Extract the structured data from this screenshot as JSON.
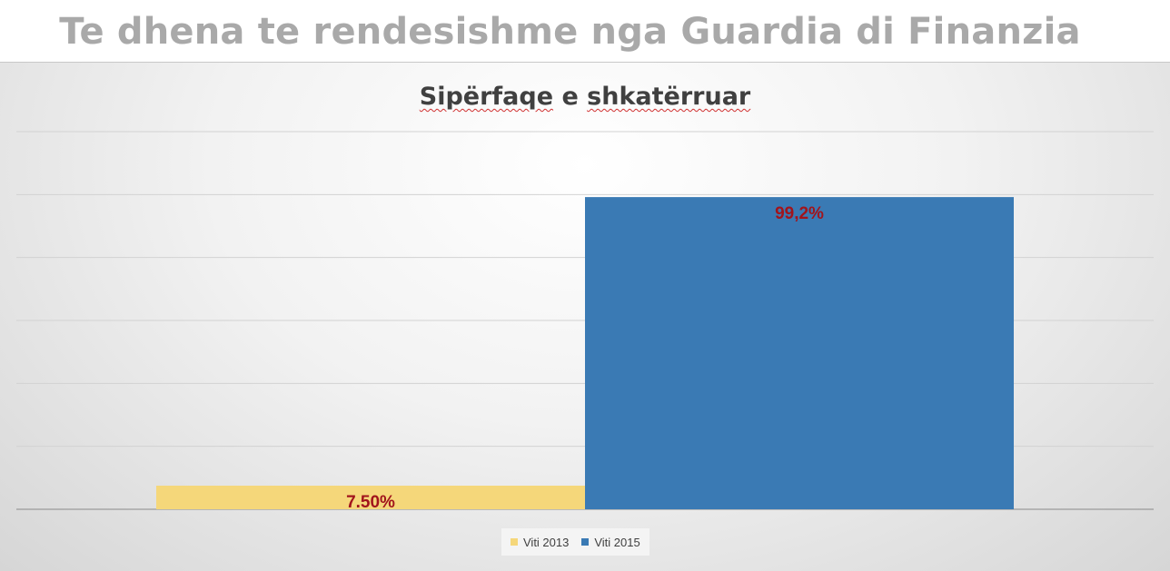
{
  "slide": {
    "title": "Te dhena te rendesishme nga Guardia di Finanzia"
  },
  "chart_data": {
    "type": "bar",
    "title_parts": [
      "Sipërfaqe",
      "e",
      "shkatërruar"
    ],
    "categories": [
      ""
    ],
    "series": [
      {
        "name": "Viti 2013",
        "value": 7.5,
        "label": "7.50%",
        "color": "#f5d77a"
      },
      {
        "name": "Viti 2015",
        "value": 99.2,
        "label": "99,2%",
        "color": "#3a7ab4"
      }
    ],
    "ylim": [
      0,
      120
    ],
    "gridlines": true,
    "legend_position": "bottom",
    "data_label_color": "#a1141c"
  }
}
